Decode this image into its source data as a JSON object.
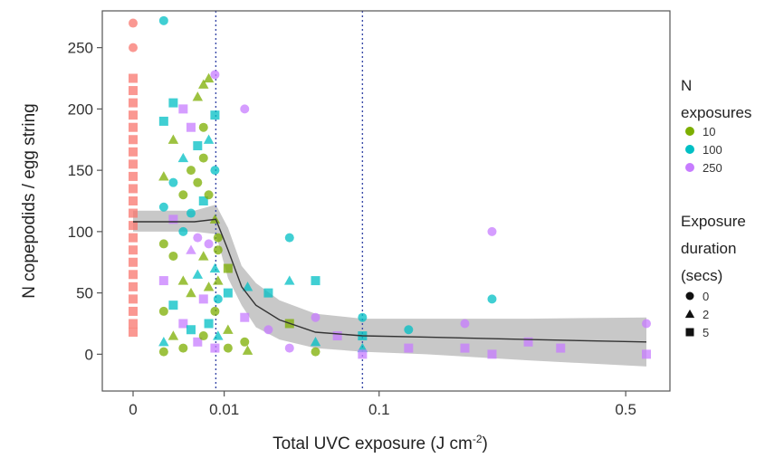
{
  "chart_data": {
    "type": "scatter",
    "xlabel_main": "Total UVC exposure (J cm",
    "xlabel_sup": "-2",
    "xlabel_close": ")",
    "ylabel": "N copepodids / egg string",
    "x_ticks": [
      {
        "value": 0,
        "label": "0"
      },
      {
        "value": 0.01,
        "label": "0.01"
      },
      {
        "value": 0.1,
        "label": "0.1"
      },
      {
        "value": 0.5,
        "label": "0.5"
      }
    ],
    "y_ticks": [
      {
        "value": 0,
        "label": "0"
      },
      {
        "value": 50,
        "label": "50"
      },
      {
        "value": 100,
        "label": "100"
      },
      {
        "value": 150,
        "label": "150"
      },
      {
        "value": 200,
        "label": "200"
      },
      {
        "value": 250,
        "label": "250"
      }
    ],
    "ylim": [
      -30,
      280
    ],
    "grid": false,
    "vlines": [
      0.008,
      0.085
    ],
    "colors": {
      "control": "#f8766d",
      "10": "#7cae00",
      "100": "#00bfc4",
      "250": "#c77cff"
    },
    "legend": {
      "color_title_1": "N",
      "color_title_2": "exposures",
      "color_entries": [
        {
          "key": "10",
          "label": "10"
        },
        {
          "key": "100",
          "label": "100"
        },
        {
          "key": "250",
          "label": "250"
        }
      ],
      "shape_title_1": "Exposure",
      "shape_title_2": "duration",
      "shape_title_3": "(secs)",
      "shape_entries": [
        {
          "shape": "circle",
          "label": "0"
        },
        {
          "shape": "triangle",
          "label": "2"
        },
        {
          "shape": "square",
          "label": "5"
        }
      ]
    },
    "fit_line": [
      [
        0,
        108
      ],
      [
        0.004,
        108
      ],
      [
        0.008,
        110
      ],
      [
        0.011,
        85
      ],
      [
        0.015,
        55
      ],
      [
        0.02,
        40
      ],
      [
        0.03,
        28
      ],
      [
        0.05,
        18
      ],
      [
        0.085,
        15
      ],
      [
        0.15,
        14
      ],
      [
        0.3,
        12
      ],
      [
        0.55,
        10
      ]
    ],
    "fit_band": [
      [
        0,
        100,
        117
      ],
      [
        0.004,
        100,
        117
      ],
      [
        0.008,
        98,
        122
      ],
      [
        0.011,
        62,
        103
      ],
      [
        0.015,
        40,
        72
      ],
      [
        0.02,
        22,
        58
      ],
      [
        0.03,
        12,
        44
      ],
      [
        0.05,
        5,
        33
      ],
      [
        0.085,
        2,
        29
      ],
      [
        0.15,
        0,
        29
      ],
      [
        0.3,
        -5,
        29
      ],
      [
        0.55,
        -10,
        30
      ]
    ],
    "points": [
      {
        "x": 0,
        "y": 270,
        "group": "control",
        "shape": "circle"
      },
      {
        "x": 0,
        "y": 250,
        "group": "control",
        "shape": "circle"
      },
      {
        "x": 0,
        "y": 225,
        "group": "control",
        "shape": "square"
      },
      {
        "x": 0,
        "y": 215,
        "group": "control",
        "shape": "square"
      },
      {
        "x": 0,
        "y": 205,
        "group": "control",
        "shape": "square"
      },
      {
        "x": 0,
        "y": 195,
        "group": "control",
        "shape": "square"
      },
      {
        "x": 0,
        "y": 185,
        "group": "control",
        "shape": "square"
      },
      {
        "x": 0,
        "y": 175,
        "group": "control",
        "shape": "square"
      },
      {
        "x": 0,
        "y": 165,
        "group": "control",
        "shape": "square"
      },
      {
        "x": 0,
        "y": 155,
        "group": "control",
        "shape": "square"
      },
      {
        "x": 0,
        "y": 145,
        "group": "control",
        "shape": "square"
      },
      {
        "x": 0,
        "y": 135,
        "group": "control",
        "shape": "square"
      },
      {
        "x": 0,
        "y": 125,
        "group": "control",
        "shape": "square"
      },
      {
        "x": 0,
        "y": 115,
        "group": "control",
        "shape": "square"
      },
      {
        "x": 0,
        "y": 105,
        "group": "control",
        "shape": "square"
      },
      {
        "x": 0,
        "y": 95,
        "group": "control",
        "shape": "square"
      },
      {
        "x": 0,
        "y": 85,
        "group": "control",
        "shape": "square"
      },
      {
        "x": 0,
        "y": 75,
        "group": "control",
        "shape": "square"
      },
      {
        "x": 0,
        "y": 65,
        "group": "control",
        "shape": "square"
      },
      {
        "x": 0,
        "y": 55,
        "group": "control",
        "shape": "square"
      },
      {
        "x": 0,
        "y": 45,
        "group": "control",
        "shape": "square"
      },
      {
        "x": 0,
        "y": 35,
        "group": "control",
        "shape": "square"
      },
      {
        "x": 0,
        "y": 25,
        "group": "control",
        "shape": "square"
      },
      {
        "x": 0,
        "y": 18,
        "group": "control",
        "shape": "square"
      },
      {
        "x": 0.0008,
        "y": 272,
        "group": "100",
        "shape": "circle"
      },
      {
        "x": 0.0008,
        "y": 190,
        "group": "100",
        "shape": "square"
      },
      {
        "x": 0.0008,
        "y": 145,
        "group": "10",
        "shape": "triangle"
      },
      {
        "x": 0.0008,
        "y": 120,
        "group": "100",
        "shape": "circle"
      },
      {
        "x": 0.0008,
        "y": 90,
        "group": "10",
        "shape": "circle"
      },
      {
        "x": 0.0008,
        "y": 60,
        "group": "250",
        "shape": "square"
      },
      {
        "x": 0.0008,
        "y": 35,
        "group": "10",
        "shape": "circle"
      },
      {
        "x": 0.0008,
        "y": 10,
        "group": "100",
        "shape": "triangle"
      },
      {
        "x": 0.0008,
        "y": 2,
        "group": "10",
        "shape": "circle"
      },
      {
        "x": 0.0015,
        "y": 205,
        "group": "100",
        "shape": "square"
      },
      {
        "x": 0.0015,
        "y": 175,
        "group": "10",
        "shape": "triangle"
      },
      {
        "x": 0.0015,
        "y": 140,
        "group": "100",
        "shape": "circle"
      },
      {
        "x": 0.0015,
        "y": 110,
        "group": "250",
        "shape": "square"
      },
      {
        "x": 0.0015,
        "y": 80,
        "group": "10",
        "shape": "circle"
      },
      {
        "x": 0.0015,
        "y": 40,
        "group": "100",
        "shape": "square"
      },
      {
        "x": 0.0015,
        "y": 15,
        "group": "10",
        "shape": "triangle"
      },
      {
        "x": 0.0025,
        "y": 200,
        "group": "250",
        "shape": "square"
      },
      {
        "x": 0.0025,
        "y": 160,
        "group": "100",
        "shape": "triangle"
      },
      {
        "x": 0.0025,
        "y": 130,
        "group": "10",
        "shape": "circle"
      },
      {
        "x": 0.0025,
        "y": 100,
        "group": "100",
        "shape": "circle"
      },
      {
        "x": 0.0025,
        "y": 60,
        "group": "10",
        "shape": "triangle"
      },
      {
        "x": 0.0025,
        "y": 25,
        "group": "250",
        "shape": "square"
      },
      {
        "x": 0.0025,
        "y": 5,
        "group": "10",
        "shape": "circle"
      },
      {
        "x": 0.0035,
        "y": 185,
        "group": "250",
        "shape": "square"
      },
      {
        "x": 0.0035,
        "y": 150,
        "group": "10",
        "shape": "circle"
      },
      {
        "x": 0.0035,
        "y": 115,
        "group": "100",
        "shape": "circle"
      },
      {
        "x": 0.0035,
        "y": 85,
        "group": "250",
        "shape": "triangle"
      },
      {
        "x": 0.0035,
        "y": 50,
        "group": "10",
        "shape": "triangle"
      },
      {
        "x": 0.0035,
        "y": 20,
        "group": "100",
        "shape": "square"
      },
      {
        "x": 0.0045,
        "y": 210,
        "group": "10",
        "shape": "triangle"
      },
      {
        "x": 0.0045,
        "y": 170,
        "group": "100",
        "shape": "square"
      },
      {
        "x": 0.0045,
        "y": 140,
        "group": "10",
        "shape": "circle"
      },
      {
        "x": 0.0045,
        "y": 95,
        "group": "250",
        "shape": "circle"
      },
      {
        "x": 0.0045,
        "y": 65,
        "group": "100",
        "shape": "triangle"
      },
      {
        "x": 0.0045,
        "y": 10,
        "group": "250",
        "shape": "square"
      },
      {
        "x": 0.0055,
        "y": 220,
        "group": "10",
        "shape": "triangle"
      },
      {
        "x": 0.0055,
        "y": 185,
        "group": "10",
        "shape": "circle"
      },
      {
        "x": 0.0055,
        "y": 160,
        "group": "10",
        "shape": "circle"
      },
      {
        "x": 0.0055,
        "y": 125,
        "group": "100",
        "shape": "square"
      },
      {
        "x": 0.0055,
        "y": 80,
        "group": "10",
        "shape": "triangle"
      },
      {
        "x": 0.0055,
        "y": 45,
        "group": "250",
        "shape": "square"
      },
      {
        "x": 0.0055,
        "y": 15,
        "group": "10",
        "shape": "circle"
      },
      {
        "x": 0.0065,
        "y": 225,
        "group": "10",
        "shape": "triangle"
      },
      {
        "x": 0.0065,
        "y": 175,
        "group": "100",
        "shape": "triangle"
      },
      {
        "x": 0.0065,
        "y": 130,
        "group": "10",
        "shape": "circle"
      },
      {
        "x": 0.0065,
        "y": 90,
        "group": "250",
        "shape": "circle"
      },
      {
        "x": 0.0065,
        "y": 55,
        "group": "10",
        "shape": "triangle"
      },
      {
        "x": 0.0065,
        "y": 25,
        "group": "100",
        "shape": "square"
      },
      {
        "x": 0.0078,
        "y": 228,
        "group": "250",
        "shape": "circle"
      },
      {
        "x": 0.0078,
        "y": 195,
        "group": "100",
        "shape": "square"
      },
      {
        "x": 0.0078,
        "y": 150,
        "group": "100",
        "shape": "circle"
      },
      {
        "x": 0.0078,
        "y": 110,
        "group": "10",
        "shape": "triangle"
      },
      {
        "x": 0.0078,
        "y": 70,
        "group": "100",
        "shape": "triangle"
      },
      {
        "x": 0.0078,
        "y": 35,
        "group": "10",
        "shape": "circle"
      },
      {
        "x": 0.0078,
        "y": 5,
        "group": "250",
        "shape": "square"
      },
      {
        "x": 0.0085,
        "y": 95,
        "group": "10",
        "shape": "circle"
      },
      {
        "x": 0.0085,
        "y": 85,
        "group": "10",
        "shape": "circle"
      },
      {
        "x": 0.0085,
        "y": 60,
        "group": "10",
        "shape": "triangle"
      },
      {
        "x": 0.0085,
        "y": 45,
        "group": "100",
        "shape": "circle"
      },
      {
        "x": 0.0085,
        "y": 15,
        "group": "100",
        "shape": "triangle"
      },
      {
        "x": 0.011,
        "y": 70,
        "group": "10",
        "shape": "square"
      },
      {
        "x": 0.011,
        "y": 50,
        "group": "100",
        "shape": "square"
      },
      {
        "x": 0.011,
        "y": 20,
        "group": "10",
        "shape": "triangle"
      },
      {
        "x": 0.011,
        "y": 5,
        "group": "10",
        "shape": "circle"
      },
      {
        "x": 0.016,
        "y": 200,
        "group": "250",
        "shape": "circle"
      },
      {
        "x": 0.016,
        "y": 30,
        "group": "250",
        "shape": "square"
      },
      {
        "x": 0.016,
        "y": 10,
        "group": "10",
        "shape": "circle"
      },
      {
        "x": 0.017,
        "y": 55,
        "group": "100",
        "shape": "triangle"
      },
      {
        "x": 0.017,
        "y": 3,
        "group": "10",
        "shape": "triangle"
      },
      {
        "x": 0.025,
        "y": 50,
        "group": "100",
        "shape": "square"
      },
      {
        "x": 0.025,
        "y": 20,
        "group": "250",
        "shape": "circle"
      },
      {
        "x": 0.035,
        "y": 95,
        "group": "100",
        "shape": "circle"
      },
      {
        "x": 0.035,
        "y": 60,
        "group": "100",
        "shape": "triangle"
      },
      {
        "x": 0.035,
        "y": 25,
        "group": "10",
        "shape": "square"
      },
      {
        "x": 0.035,
        "y": 5,
        "group": "250",
        "shape": "circle"
      },
      {
        "x": 0.05,
        "y": 60,
        "group": "100",
        "shape": "square"
      },
      {
        "x": 0.05,
        "y": 30,
        "group": "250",
        "shape": "circle"
      },
      {
        "x": 0.05,
        "y": 10,
        "group": "100",
        "shape": "triangle"
      },
      {
        "x": 0.05,
        "y": 2,
        "group": "10",
        "shape": "circle"
      },
      {
        "x": 0.065,
        "y": 15,
        "group": "250",
        "shape": "square"
      },
      {
        "x": 0.085,
        "y": 30,
        "group": "100",
        "shape": "circle"
      },
      {
        "x": 0.085,
        "y": 15,
        "group": "100",
        "shape": "square"
      },
      {
        "x": 0.085,
        "y": 5,
        "group": "100",
        "shape": "triangle"
      },
      {
        "x": 0.085,
        "y": 0,
        "group": "250",
        "shape": "square"
      },
      {
        "x": 0.13,
        "y": 20,
        "group": "100",
        "shape": "circle"
      },
      {
        "x": 0.13,
        "y": 5,
        "group": "250",
        "shape": "square"
      },
      {
        "x": 0.2,
        "y": 25,
        "group": "250",
        "shape": "circle"
      },
      {
        "x": 0.2,
        "y": 5,
        "group": "250",
        "shape": "square"
      },
      {
        "x": 0.24,
        "y": 100,
        "group": "250",
        "shape": "circle"
      },
      {
        "x": 0.24,
        "y": 45,
        "group": "100",
        "shape": "circle"
      },
      {
        "x": 0.24,
        "y": 0,
        "group": "250",
        "shape": "square"
      },
      {
        "x": 0.3,
        "y": 10,
        "group": "250",
        "shape": "square"
      },
      {
        "x": 0.36,
        "y": 5,
        "group": "250",
        "shape": "square"
      },
      {
        "x": 0.55,
        "y": 25,
        "group": "250",
        "shape": "circle"
      },
      {
        "x": 0.55,
        "y": 0,
        "group": "250",
        "shape": "square"
      }
    ]
  }
}
